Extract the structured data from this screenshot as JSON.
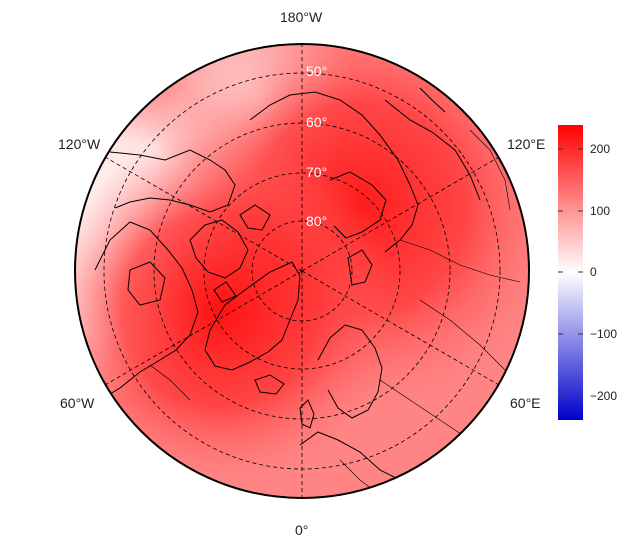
{
  "map": {
    "projection": "north-polar-stereographic",
    "longitude_labels": {
      "top": "180°W",
      "bottom": "0°",
      "upper_left": "120°W",
      "upper_right": "120°E",
      "lower_left": "60°W",
      "lower_right": "60°E"
    },
    "latitude_labels": [
      "50°",
      "60°",
      "70°",
      "80°"
    ],
    "field_colors": {
      "max": "#ff0000",
      "high": "#ff4040",
      "mid": "#ff9a9a",
      "low": "#ffe4e4",
      "zero": "#ffffff"
    }
  },
  "colorbar": {
    "ticks": [
      "200",
      "100",
      "0",
      "−100",
      "−200"
    ],
    "range": [
      -240,
      240
    ],
    "colors": {
      "top": "#ff0000",
      "middle": "#ffffff",
      "bottom": "#0000cc"
    }
  }
}
